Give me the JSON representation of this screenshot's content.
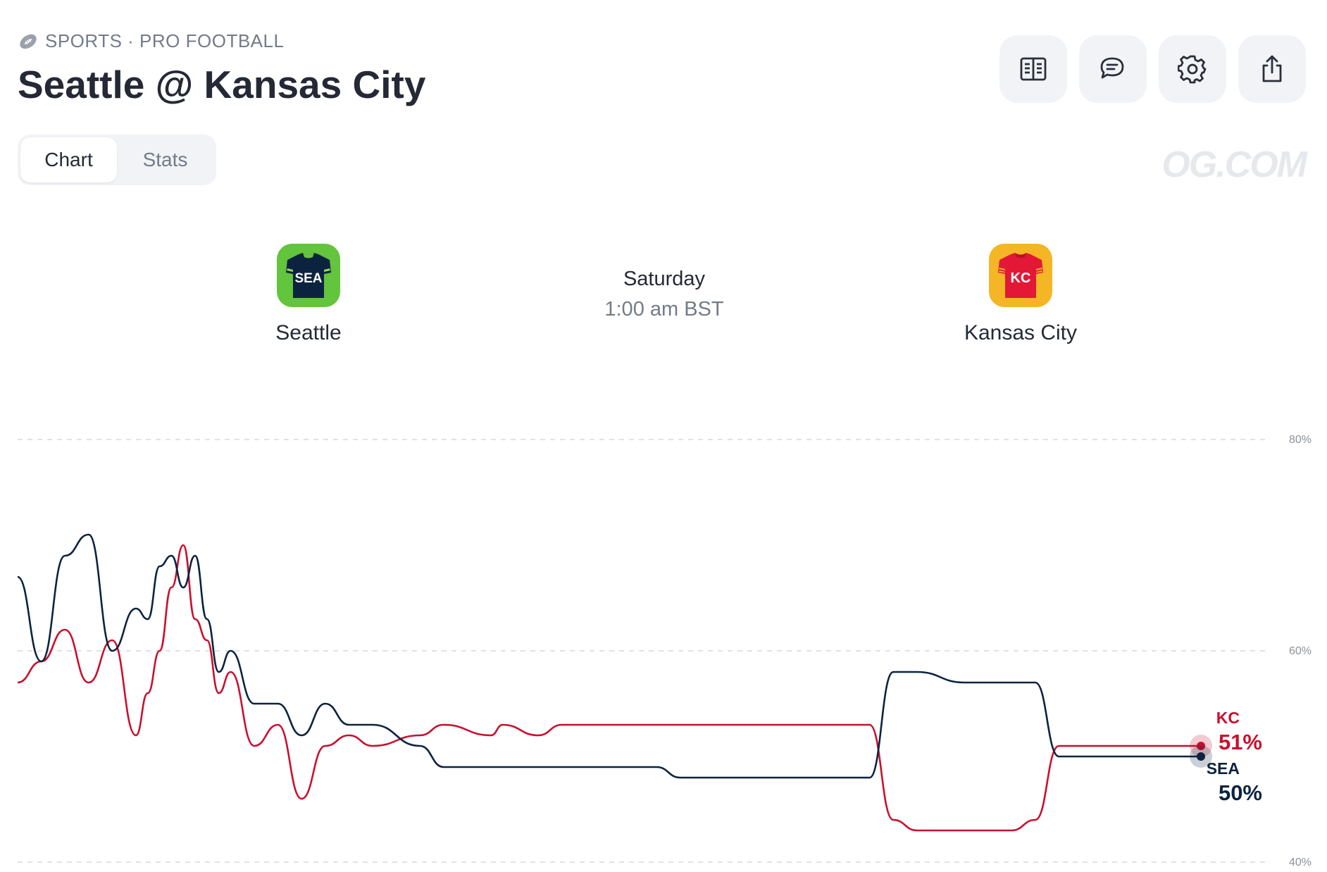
{
  "header": {
    "category": "SPORTS · PRO FOOTBALL",
    "category_icon": "football-icon",
    "title": "Seattle @ Kansas City"
  },
  "actions": [
    {
      "name": "scoreboard-button",
      "icon": "book-icon"
    },
    {
      "name": "comments-button",
      "icon": "chat-icon"
    },
    {
      "name": "settings-button",
      "icon": "gear-icon"
    },
    {
      "name": "share-button",
      "icon": "share-icon"
    }
  ],
  "tabs": [
    {
      "label": "Chart",
      "active": true
    },
    {
      "label": "Stats",
      "active": false
    }
  ],
  "watermark": "OG.COM",
  "matchup": {
    "away": {
      "name": "Seattle",
      "abbr": "SEA",
      "color": "#0c2340",
      "logo_bg": "#63c43d"
    },
    "home": {
      "name": "Kansas City",
      "abbr": "KC",
      "color": "#c8102e",
      "logo_bg": "#f5b625"
    },
    "day": "Saturday",
    "time": "1:00 am BST"
  },
  "chart_data": {
    "type": "line",
    "ylim": [
      40,
      80
    ],
    "y_ticks": [
      "80%",
      "60%",
      "40%"
    ],
    "y_tick_values": [
      80,
      60,
      40
    ],
    "grid": true,
    "x": [
      0,
      2,
      4,
      6,
      8,
      10,
      11,
      12,
      13,
      14,
      15,
      16,
      17,
      18,
      20,
      22,
      24,
      26,
      28,
      30,
      34,
      36,
      40,
      41,
      44,
      46,
      48,
      52,
      54,
      56,
      60,
      62,
      66,
      72,
      74,
      76,
      80,
      82,
      84,
      86,
      88,
      92,
      100
    ],
    "series": [
      {
        "name": "KC",
        "color": "#c8102e",
        "values": [
          57,
          59,
          62,
          57,
          61,
          52,
          56,
          60,
          66,
          70,
          63,
          61,
          56,
          58,
          51,
          53,
          46,
          51,
          52,
          51,
          52,
          53,
          52,
          53,
          52,
          53,
          53,
          53,
          53,
          53,
          53,
          53,
          53,
          53,
          44,
          43,
          43,
          43,
          43,
          44,
          51,
          51,
          51
        ]
      },
      {
        "name": "SEA",
        "color": "#0c2340",
        "values": [
          67,
          59,
          69,
          71,
          60,
          64,
          63,
          68,
          69,
          66,
          69,
          63,
          58,
          60,
          55,
          55,
          52,
          55,
          53,
          53,
          51,
          49,
          49,
          49,
          49,
          49,
          49,
          49,
          49,
          48,
          48,
          48,
          48,
          48,
          58,
          58,
          57,
          57,
          57,
          57,
          50,
          50,
          50
        ]
      }
    ],
    "end_labels": [
      {
        "team": "KC",
        "value": "51%"
      },
      {
        "team": "SEA",
        "value": "50%"
      }
    ]
  }
}
